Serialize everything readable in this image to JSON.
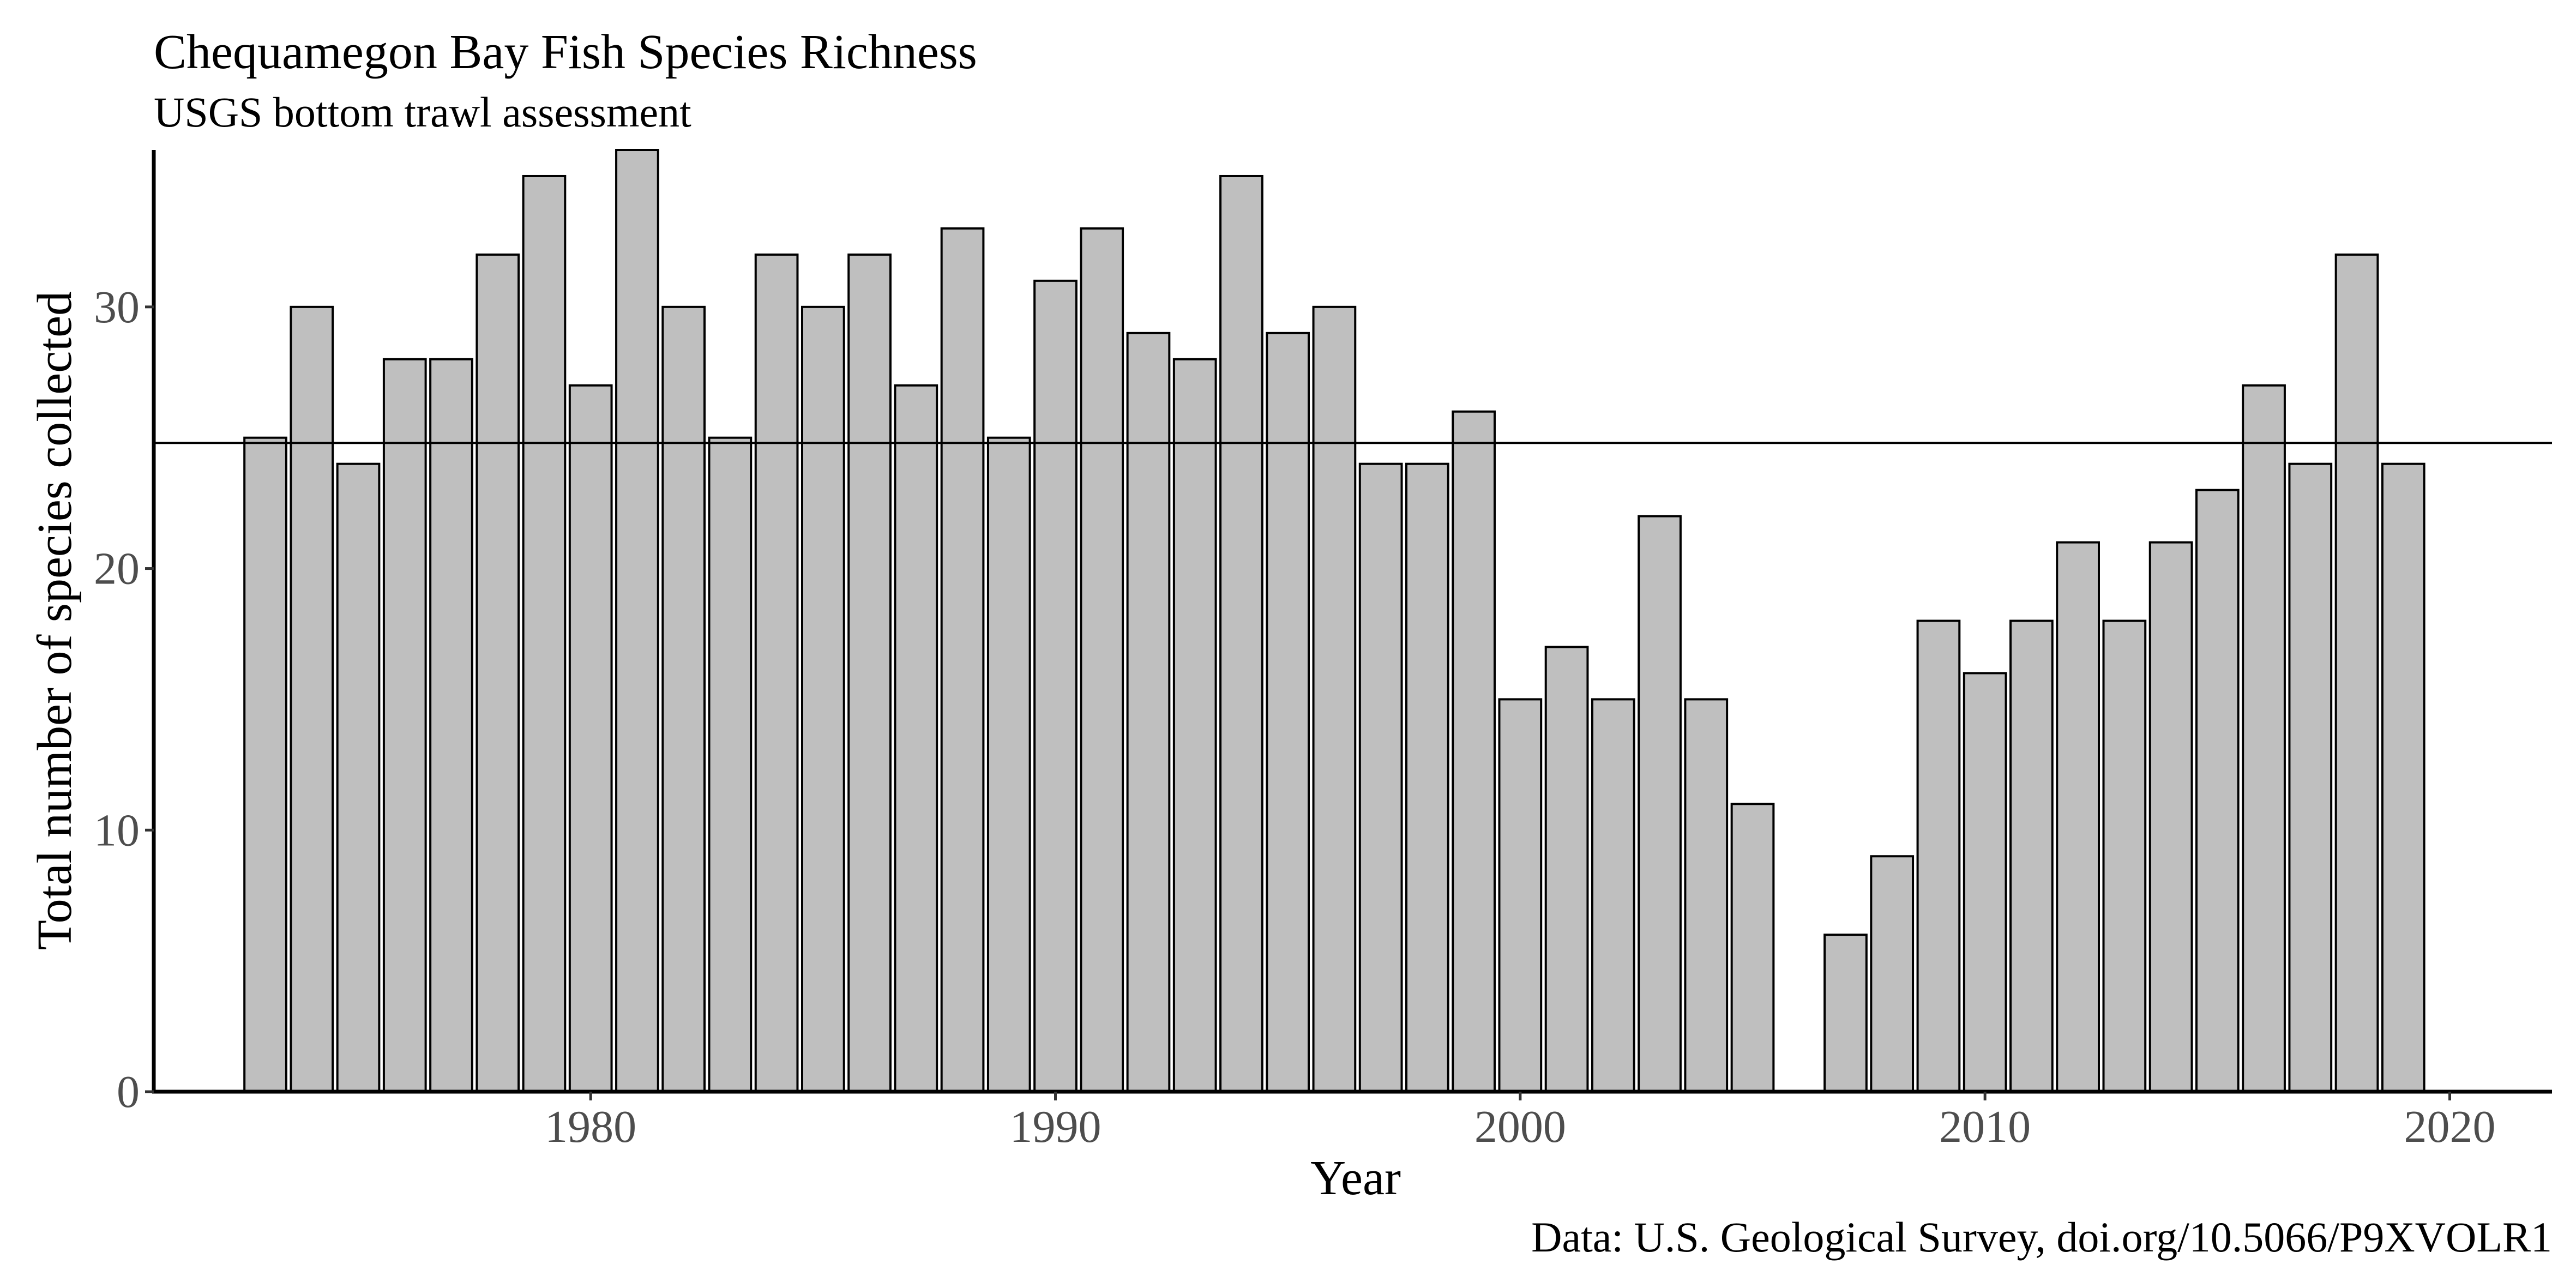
{
  "chart_data": {
    "type": "bar",
    "title": "Chequamegon Bay Fish Species Richness",
    "subtitle": "USGS bottom trawl assessment",
    "xlabel": "Year",
    "ylabel": "Total number of species collected",
    "caption": "Data: U.S. Geological Survey, doi.org/10.5066/P9XVOLR1",
    "xlim": [
      1970.6,
      2022.2
    ],
    "ylim": [
      0,
      36
    ],
    "x_ticks": [
      1980,
      1990,
      2000,
      2010,
      2020
    ],
    "y_ticks": [
      0,
      10,
      20,
      30
    ],
    "reference_line": 24.8,
    "grid": false,
    "bar_color": "#bfbfbf",
    "bar_outline": "#000000",
    "x": [
      1973,
      1974,
      1975,
      1976,
      1977,
      1978,
      1979,
      1980,
      1981,
      1982,
      1983,
      1984,
      1985,
      1986,
      1987,
      1988,
      1989,
      1990,
      1991,
      1992,
      1993,
      1994,
      1995,
      1996,
      1997,
      1998,
      1999,
      2000,
      2001,
      2002,
      2003,
      2004,
      2005,
      2007,
      2008,
      2009,
      2010,
      2011,
      2012,
      2013,
      2014,
      2015,
      2016,
      2017,
      2018,
      2019
    ],
    "values": [
      25,
      30,
      24,
      28,
      28,
      32,
      35,
      27,
      36,
      30,
      25,
      32,
      30,
      32,
      27,
      33,
      25,
      31,
      33,
      29,
      28,
      35,
      29,
      30,
      24,
      24,
      26,
      15,
      17,
      15,
      22,
      15,
      11,
      6,
      9,
      18,
      16,
      18,
      21,
      18,
      21,
      23,
      27,
      24,
      32,
      24
    ]
  }
}
